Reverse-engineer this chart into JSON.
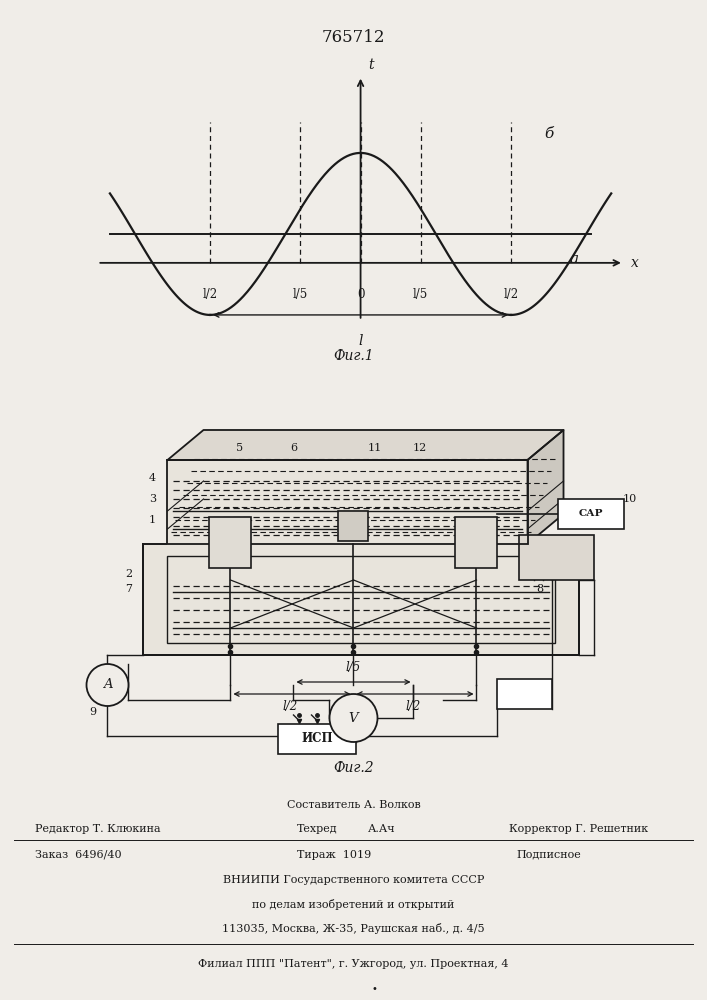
{
  "patent_number": "765712",
  "fig1_caption": "Фиг.1",
  "fig2_caption": "Фиг.2",
  "fig1_curve_label_b": "б",
  "fig1_curve_label_a": "а",
  "x_axis_label": "x",
  "t_axis_label": "t",
  "sar_label": "САР",
  "isp_label": "ИСП",
  "v_label": "V",
  "a_label": "A",
  "bg_color": "#f0ede8",
  "line_color": "#1a1a1a",
  "footer_line1": "Составитель А. Волков",
  "footer_editor": "Редактор Т. Клюкина",
  "footer_tech": "Техред",
  "footer_tech2": "А.Ач",
  "footer_corrector": "Корректор Г. Решетник",
  "footer_order": "Заказ  6496/40",
  "footer_tirazh": "Тираж  1019",
  "footer_podpisnoe": "Подписное",
  "footer_vniip1": "ВНИИПИ Государственного комитета СССР",
  "footer_vniip2": "по делам изобретений и открытий",
  "footer_vniip3": "113035, Москва, Ж-35, Раушская наб., д. 4/5",
  "footer_filial": "Филиал ППП \"Патент\", г. Ужгород, ул. Проектная, 4"
}
